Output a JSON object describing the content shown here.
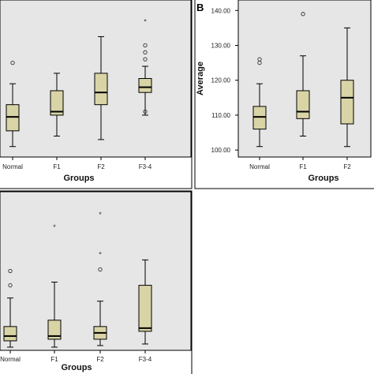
{
  "chart_data": [
    {
      "type": "boxplot",
      "panel": "",
      "xlabel": "Groups",
      "ylabel": "",
      "categories": [
        "Normal",
        "F1",
        "F2",
        "F3-4"
      ],
      "ylim": [
        98,
        143
      ],
      "yticks": [],
      "boxes": [
        {
          "min": 101,
          "q1": 105.5,
          "median": 109.5,
          "q3": 113,
          "max": 119,
          "outliers": [
            125
          ],
          "extremes": []
        },
        {
          "min": 104,
          "q1": 110,
          "median": 111,
          "q3": 117,
          "max": 122,
          "outliers": [],
          "extremes": []
        },
        {
          "min": 103,
          "q1": 113,
          "median": 116.5,
          "q3": 122,
          "max": 132.5,
          "outliers": [],
          "extremes": []
        },
        {
          "min": 110,
          "q1": 116.5,
          "median": 118,
          "q3": 120.5,
          "max": 124,
          "outliers": [
            111,
            126,
            128,
            130
          ],
          "extremes": [
            137
          ]
        }
      ]
    },
    {
      "type": "boxplot",
      "panel": "B",
      "xlabel": "Groups",
      "ylabel": "Average",
      "categories": [
        "Normal",
        "F1",
        "F2"
      ],
      "ylim": [
        98,
        143
      ],
      "yticks": [
        "100.00",
        "110.00",
        "120.00",
        "130.00",
        "140.00"
      ],
      "boxes": [
        {
          "min": 101,
          "q1": 106,
          "median": 109.5,
          "q3": 112.5,
          "max": 119,
          "outliers": [
            125,
            126
          ],
          "extremes": []
        },
        {
          "min": 104,
          "q1": 109,
          "median": 111,
          "q3": 117,
          "max": 127,
          "outliers": [
            139
          ],
          "extremes": []
        },
        {
          "min": 101,
          "q1": 107.5,
          "median": 115,
          "q3": 120,
          "max": 135,
          "outliers": [],
          "extremes": []
        }
      ]
    },
    {
      "type": "boxplot",
      "panel": "",
      "xlabel": "Groups",
      "ylabel": "",
      "categories": [
        "Normal",
        "F1",
        "F2",
        "F3-4"
      ],
      "ylim": [
        0,
        100
      ],
      "yticks": [],
      "boxes": [
        {
          "min": 2,
          "q1": 6,
          "median": 9,
          "q3": 15,
          "max": 33,
          "outliers": [
            41,
            50
          ],
          "extremes": []
        },
        {
          "min": 2,
          "q1": 7,
          "median": 9,
          "q3": 19,
          "max": 43,
          "outliers": [],
          "extremes": [
            78
          ]
        },
        {
          "min": 3,
          "q1": 7,
          "median": 11,
          "q3": 15,
          "max": 31,
          "outliers": [
            51
          ],
          "extremes": [
            61,
            86
          ]
        },
        {
          "min": 4,
          "q1": 12,
          "median": 14,
          "q3": 41,
          "max": 57,
          "outliers": [],
          "extremes": []
        }
      ]
    }
  ],
  "colors": {
    "plot_background": "#e6e6e6",
    "box_fill": "#d9d4a6",
    "stroke": "#000000"
  }
}
